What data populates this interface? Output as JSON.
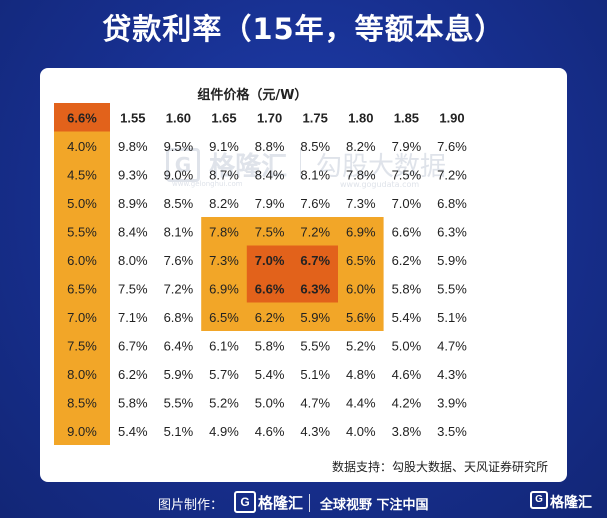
{
  "title": "贷款利率（15年，等额本息）",
  "colors": {
    "background": "#172f8e",
    "rate_column": "#f2a628",
    "highlight_light": "#f2a628",
    "highlight_dark": "#e2621b",
    "text": "#222222"
  },
  "chart_data": {
    "type": "table",
    "column_header": "组件价格（元/W）",
    "corner": "6.6%",
    "prices": [
      "1.55",
      "1.60",
      "1.65",
      "1.70",
      "1.75",
      "1.80",
      "1.85",
      "1.90"
    ],
    "rates": [
      "4.0%",
      "4.5%",
      "5.0%",
      "5.5%",
      "6.0%",
      "6.5%",
      "7.0%",
      "7.5%",
      "8.0%",
      "8.5%",
      "9.0%"
    ],
    "values": [
      [
        "9.8%",
        "9.5%",
        "9.1%",
        "8.8%",
        "8.5%",
        "8.2%",
        "7.9%",
        "7.6%"
      ],
      [
        "9.3%",
        "9.0%",
        "8.7%",
        "8.4%",
        "8.1%",
        "7.8%",
        "7.5%",
        "7.2%"
      ],
      [
        "8.9%",
        "8.5%",
        "8.2%",
        "7.9%",
        "7.6%",
        "7.3%",
        "7.0%",
        "6.8%"
      ],
      [
        "8.4%",
        "8.1%",
        "7.8%",
        "7.5%",
        "7.2%",
        "6.9%",
        "6.6%",
        "6.3%"
      ],
      [
        "8.0%",
        "7.6%",
        "7.3%",
        "7.0%",
        "6.7%",
        "6.5%",
        "6.2%",
        "5.9%"
      ],
      [
        "7.5%",
        "7.2%",
        "6.9%",
        "6.6%",
        "6.3%",
        "6.0%",
        "5.8%",
        "5.5%"
      ],
      [
        "7.1%",
        "6.8%",
        "6.5%",
        "6.2%",
        "5.9%",
        "5.6%",
        "5.4%",
        "5.1%"
      ],
      [
        "6.7%",
        "6.4%",
        "6.1%",
        "5.8%",
        "5.5%",
        "5.2%",
        "5.0%",
        "4.7%"
      ],
      [
        "6.2%",
        "5.9%",
        "5.7%",
        "5.4%",
        "5.1%",
        "4.8%",
        "4.6%",
        "4.3%"
      ],
      [
        "5.8%",
        "5.5%",
        "5.2%",
        "5.0%",
        "4.7%",
        "4.4%",
        "4.2%",
        "3.9%"
      ],
      [
        "5.4%",
        "5.1%",
        "4.9%",
        "4.6%",
        "4.3%",
        "4.0%",
        "3.8%",
        "3.5%"
      ]
    ],
    "highlight_light": {
      "rows": [
        3,
        6
      ],
      "cols": [
        2,
        5
      ]
    },
    "highlight_dark": {
      "rows": [
        4,
        5
      ],
      "cols": [
        3,
        4
      ]
    },
    "source": "数据支持：勾股大数据、天风证券研究所"
  },
  "watermark": {
    "brand": "格隆汇",
    "brand_url": "www.gelonghui.com",
    "partner": "勾股大数据",
    "partner_url": "www.gogudata.com"
  },
  "footer": {
    "made_by": "图片制作：",
    "logo_text": "格隆汇",
    "slogan": "全球视野 下注中国",
    "corner_logo": "格隆汇",
    "logo_glyph": "G"
  }
}
